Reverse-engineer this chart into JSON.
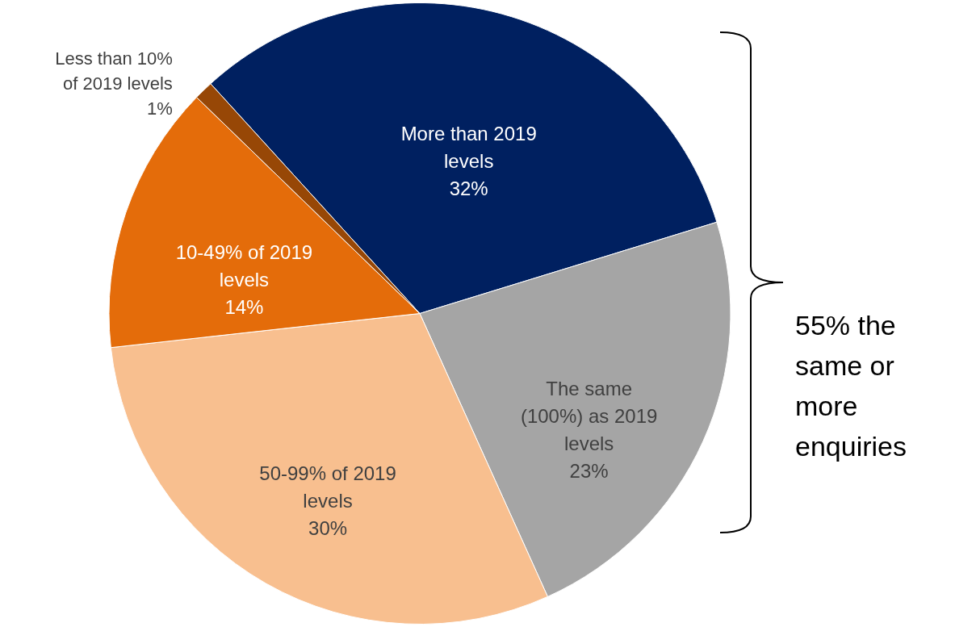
{
  "chart_data": {
    "type": "pie",
    "categories": [
      "More than 2019 levels",
      "The same (100%) as 2019 levels",
      "50-99% of 2019 levels",
      "10-49% of 2019 levels",
      "Less than 10% of 2019 levels"
    ],
    "values": [
      32,
      23,
      30,
      14,
      1
    ],
    "value_labels": [
      "32%",
      "23%",
      "30%",
      "14%",
      "1%"
    ],
    "colors": [
      "#002060",
      "#a5a5a5",
      "#f8bf8f",
      "#e46c0a",
      "#974706"
    ],
    "annotations": [
      "55% the same or more enquiries"
    ]
  }
}
